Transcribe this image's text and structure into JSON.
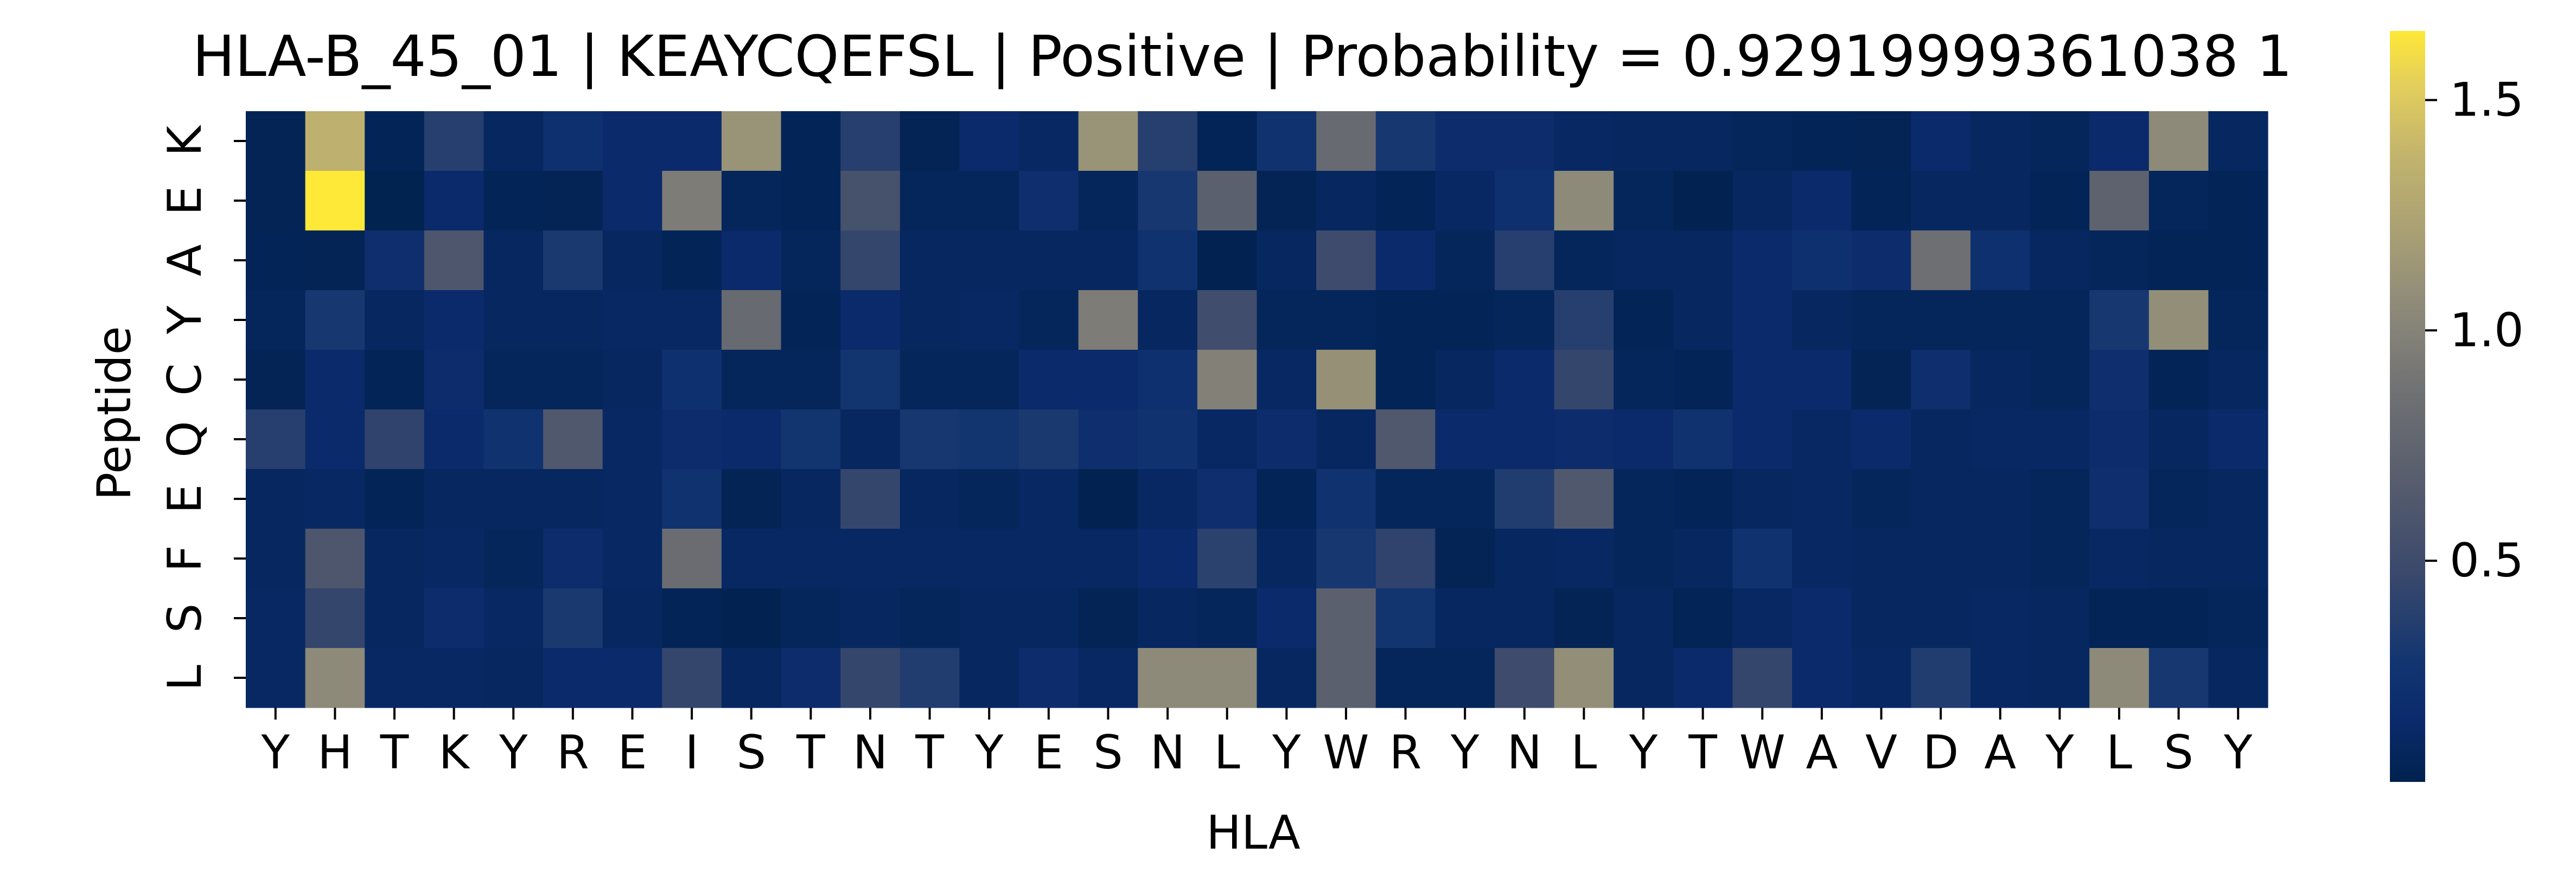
{
  "chart_data": {
    "type": "heatmap",
    "title": "HLA-B_45_01 | KEAYCQEFSL | Positive | Probability = 0.92919999361038 1",
    "xlabel": "HLA",
    "ylabel": "Peptide",
    "x_categories": [
      "Y",
      "H",
      "T",
      "K",
      "Y",
      "R",
      "E",
      "I",
      "S",
      "T",
      "N",
      "T",
      "Y",
      "E",
      "S",
      "N",
      "L",
      "Y",
      "W",
      "R",
      "Y",
      "N",
      "L",
      "Y",
      "T",
      "W",
      "A",
      "V",
      "D",
      "A",
      "Y",
      "L",
      "S",
      "Y"
    ],
    "y_categories": [
      "K",
      "E",
      "A",
      "Y",
      "C",
      "Q",
      "E",
      "F",
      "S",
      "L"
    ],
    "colorbar": {
      "colormap": "cividis",
      "vmin": 0.02,
      "vmax": 1.65,
      "ticks": [
        0.5,
        1.0,
        1.5
      ],
      "tick_labels": [
        "0.5",
        "1.0",
        "1.5"
      ]
    },
    "values": [
      [
        0.05,
        1.35,
        0.06,
        0.38,
        0.1,
        0.22,
        0.15,
        0.15,
        1.12,
        0.06,
        0.38,
        0.05,
        0.15,
        0.12,
        1.12,
        0.38,
        0.06,
        0.25,
        0.8,
        0.3,
        0.18,
        0.18,
        0.12,
        0.1,
        0.1,
        0.08,
        0.06,
        0.05,
        0.15,
        0.1,
        0.08,
        0.15,
        1.05,
        0.1
      ],
      [
        0.05,
        1.65,
        0.03,
        0.15,
        0.06,
        0.05,
        0.15,
        0.95,
        0.08,
        0.06,
        0.55,
        0.08,
        0.08,
        0.2,
        0.08,
        0.3,
        0.7,
        0.05,
        0.1,
        0.06,
        0.12,
        0.22,
        1.05,
        0.08,
        0.04,
        0.1,
        0.15,
        0.06,
        0.1,
        0.1,
        0.06,
        0.72,
        0.08,
        0.06
      ],
      [
        0.06,
        0.05,
        0.2,
        0.6,
        0.1,
        0.32,
        0.1,
        0.06,
        0.15,
        0.08,
        0.45,
        0.1,
        0.1,
        0.1,
        0.1,
        0.25,
        0.04,
        0.1,
        0.5,
        0.15,
        0.08,
        0.38,
        0.08,
        0.1,
        0.1,
        0.15,
        0.22,
        0.18,
        0.85,
        0.22,
        0.1,
        0.08,
        0.06,
        0.06
      ],
      [
        0.08,
        0.3,
        0.1,
        0.15,
        0.1,
        0.1,
        0.12,
        0.12,
        0.8,
        0.06,
        0.15,
        0.1,
        0.12,
        0.08,
        0.95,
        0.1,
        0.52,
        0.08,
        0.08,
        0.06,
        0.06,
        0.08,
        0.38,
        0.06,
        0.1,
        0.15,
        0.1,
        0.08,
        0.08,
        0.08,
        0.08,
        0.3,
        1.08,
        0.08
      ],
      [
        0.05,
        0.15,
        0.06,
        0.18,
        0.08,
        0.08,
        0.1,
        0.22,
        0.08,
        0.08,
        0.28,
        0.08,
        0.08,
        0.15,
        0.15,
        0.22,
        0.98,
        0.12,
        1.1,
        0.06,
        0.1,
        0.15,
        0.45,
        0.08,
        0.06,
        0.15,
        0.15,
        0.05,
        0.2,
        0.1,
        0.08,
        0.2,
        0.06,
        0.1
      ],
      [
        0.38,
        0.15,
        0.42,
        0.15,
        0.25,
        0.62,
        0.12,
        0.18,
        0.15,
        0.28,
        0.1,
        0.3,
        0.28,
        0.32,
        0.2,
        0.25,
        0.12,
        0.18,
        0.1,
        0.62,
        0.15,
        0.15,
        0.18,
        0.15,
        0.25,
        0.15,
        0.12,
        0.15,
        0.1,
        0.12,
        0.12,
        0.18,
        0.1,
        0.15
      ],
      [
        0.1,
        0.12,
        0.06,
        0.1,
        0.1,
        0.1,
        0.12,
        0.25,
        0.05,
        0.1,
        0.45,
        0.1,
        0.08,
        0.12,
        0.04,
        0.12,
        0.2,
        0.06,
        0.25,
        0.08,
        0.08,
        0.35,
        0.62,
        0.08,
        0.06,
        0.1,
        0.12,
        0.08,
        0.1,
        0.1,
        0.08,
        0.2,
        0.08,
        0.1
      ],
      [
        0.1,
        0.6,
        0.1,
        0.12,
        0.08,
        0.18,
        0.12,
        0.82,
        0.12,
        0.12,
        0.12,
        0.12,
        0.12,
        0.12,
        0.12,
        0.15,
        0.4,
        0.1,
        0.3,
        0.42,
        0.05,
        0.1,
        0.12,
        0.08,
        0.1,
        0.25,
        0.12,
        0.1,
        0.1,
        0.1,
        0.08,
        0.12,
        0.1,
        0.1
      ],
      [
        0.12,
        0.45,
        0.1,
        0.18,
        0.12,
        0.32,
        0.1,
        0.06,
        0.04,
        0.08,
        0.1,
        0.08,
        0.1,
        0.1,
        0.05,
        0.1,
        0.08,
        0.15,
        0.7,
        0.28,
        0.1,
        0.1,
        0.05,
        0.1,
        0.06,
        0.12,
        0.15,
        0.1,
        0.1,
        0.12,
        0.1,
        0.06,
        0.06,
        0.08
      ],
      [
        0.12,
        1.05,
        0.12,
        0.12,
        0.1,
        0.15,
        0.15,
        0.45,
        0.1,
        0.18,
        0.45,
        0.35,
        0.1,
        0.18,
        0.12,
        1.05,
        1.05,
        0.1,
        0.7,
        0.08,
        0.08,
        0.5,
        1.08,
        0.1,
        0.15,
        0.45,
        0.15,
        0.12,
        0.35,
        0.12,
        0.1,
        1.05,
        0.3,
        0.1
      ]
    ]
  }
}
